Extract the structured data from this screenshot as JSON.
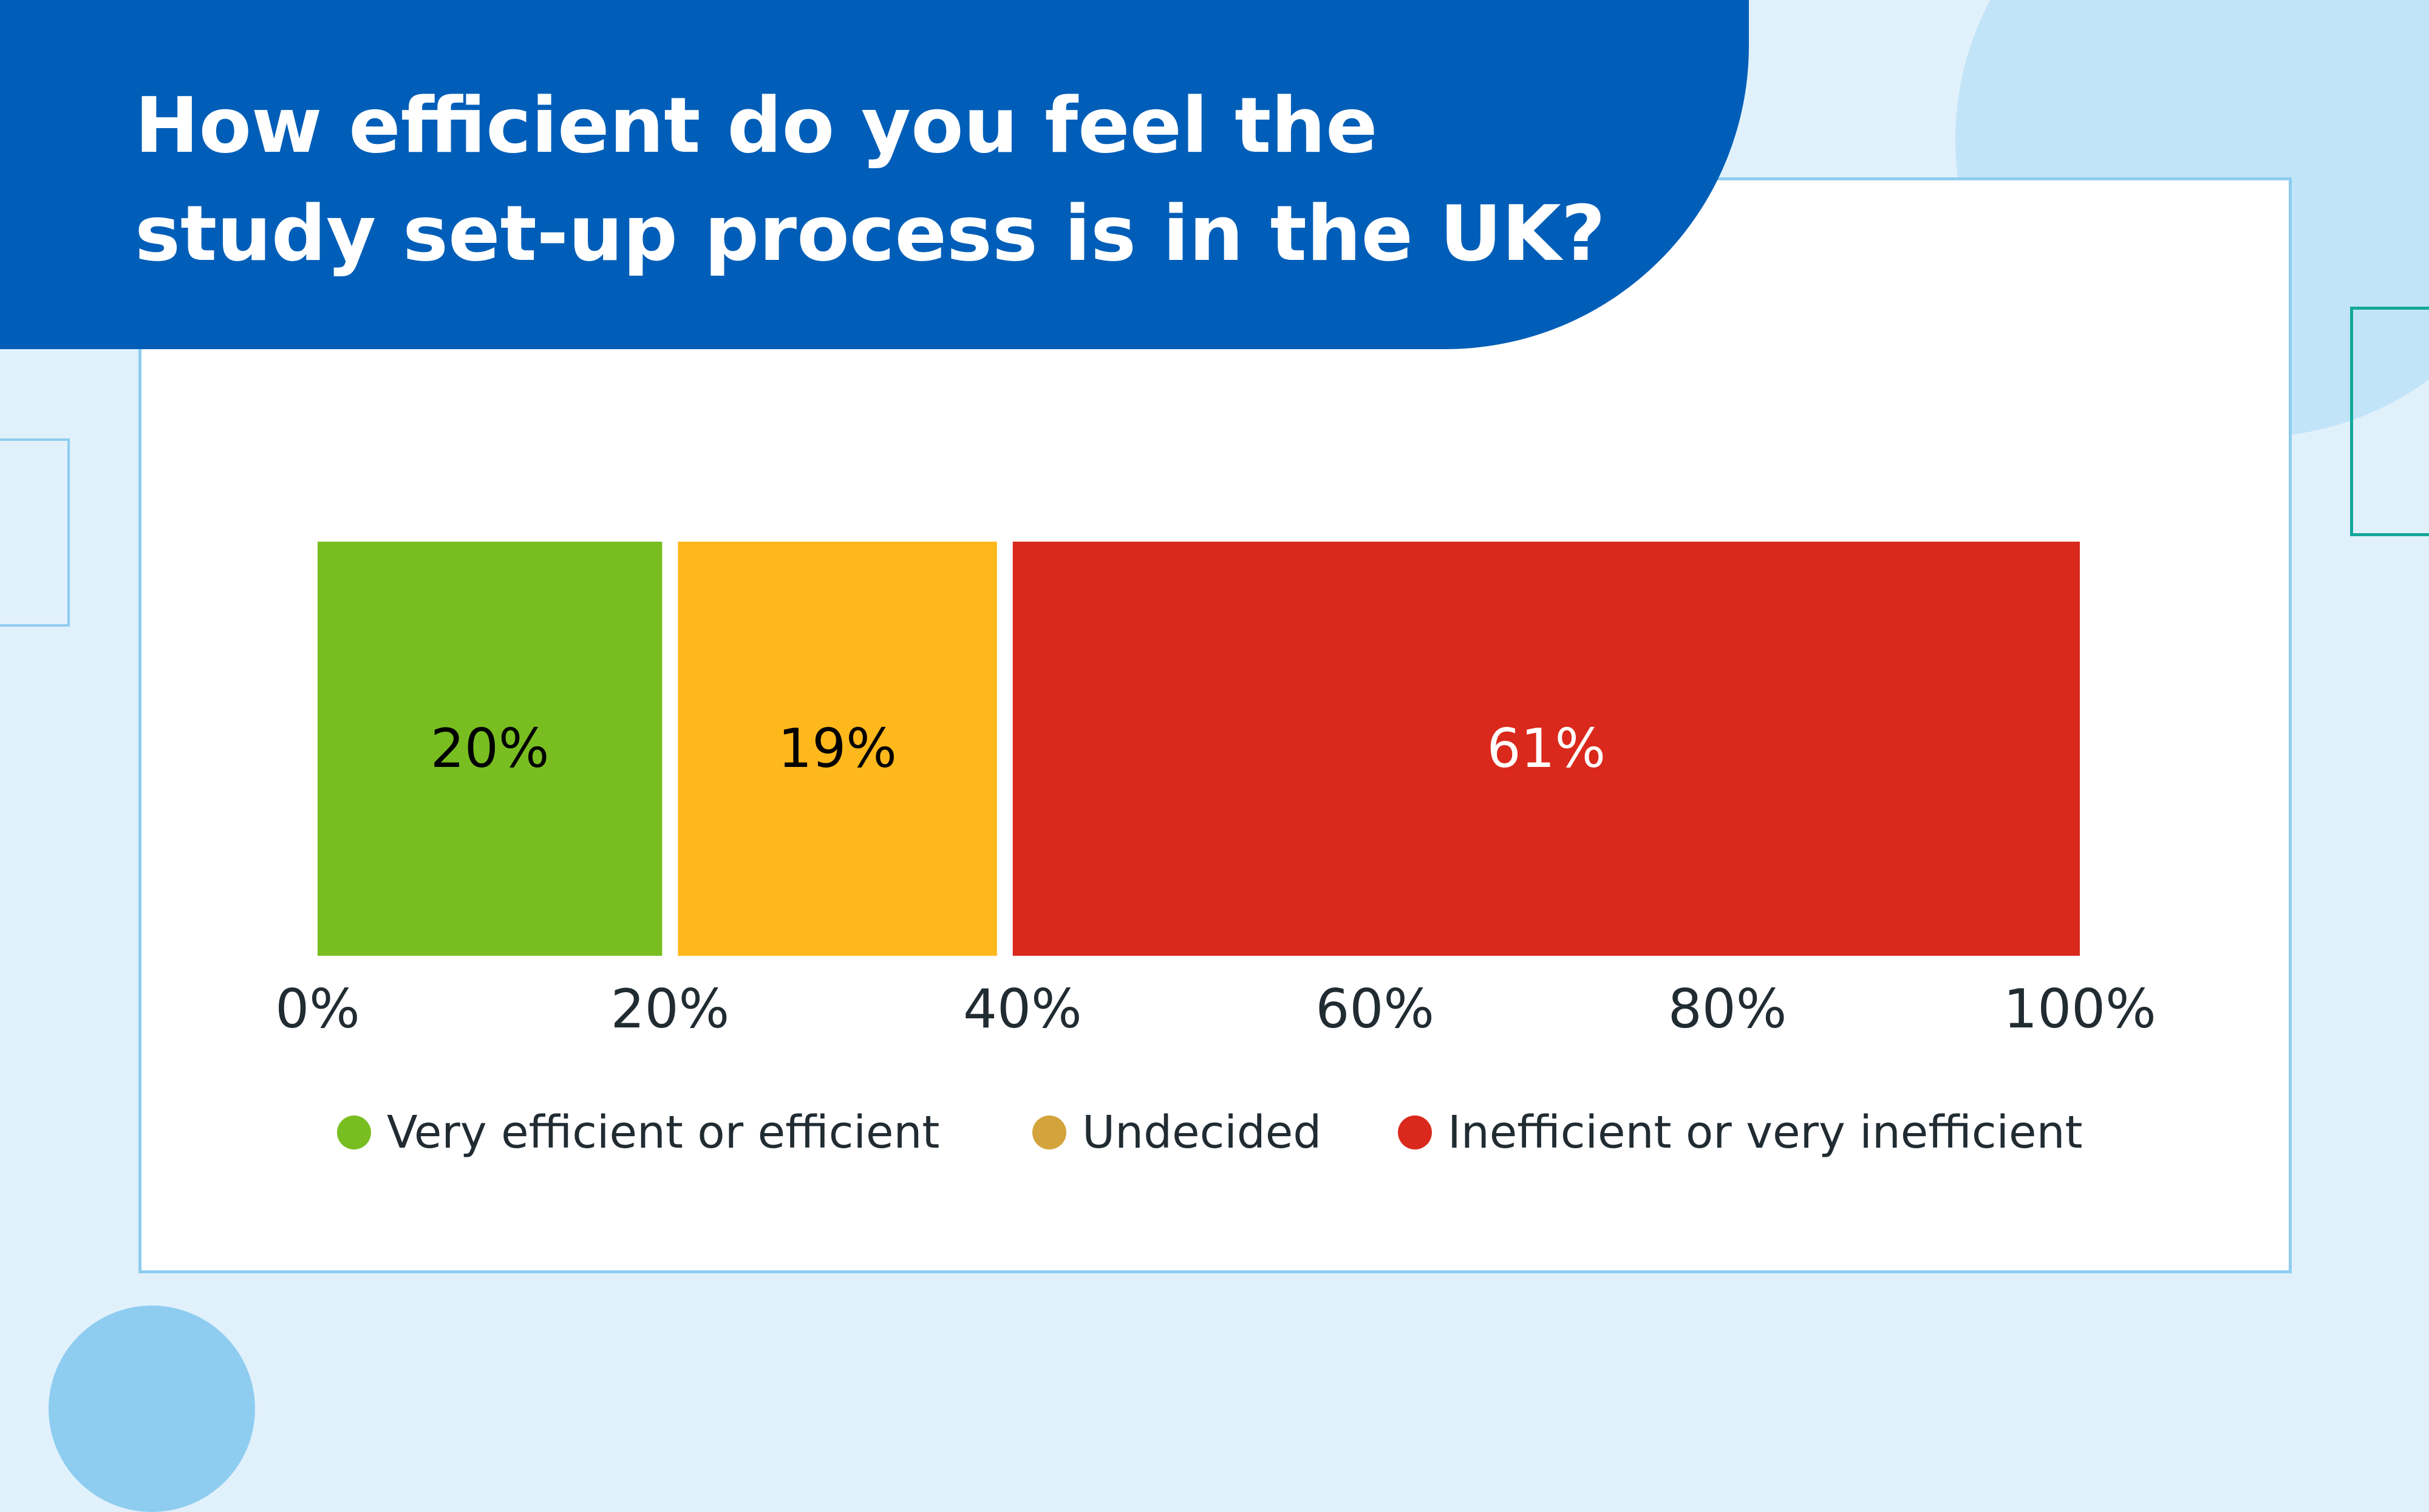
{
  "title_line1": "How efficient do you feel the",
  "title_line2": "study set-up process is in the UK?",
  "colors": {
    "background": "#e1f1fc",
    "banner": "#005eb8",
    "card_border": "#8ecdf0"
  },
  "chart_data": {
    "type": "bar",
    "orientation": "horizontal-stacked",
    "title": "How efficient do you feel the study set-up process is in the UK?",
    "xlim": [
      0,
      100
    ],
    "x_ticks": [
      "0%",
      "20%",
      "40%",
      "60%",
      "80%",
      "100%"
    ],
    "legend_position": "bottom",
    "grid": false,
    "series": [
      {
        "name": "Very efficient or efficient",
        "value": 20,
        "label": "20%",
        "color": "#78be20",
        "legend_color": "#78be20",
        "label_color": "#000000"
      },
      {
        "name": "Undecided",
        "value": 19,
        "label": "19%",
        "color": "#ffb81c",
        "legend_color": "#d3a43c",
        "label_color": "#000000"
      },
      {
        "name": "Inefficient or very inefficient",
        "value": 61,
        "label": "61%",
        "color": "#da291c",
        "legend_color": "#da291c",
        "label_color": "#ffffff"
      }
    ]
  }
}
